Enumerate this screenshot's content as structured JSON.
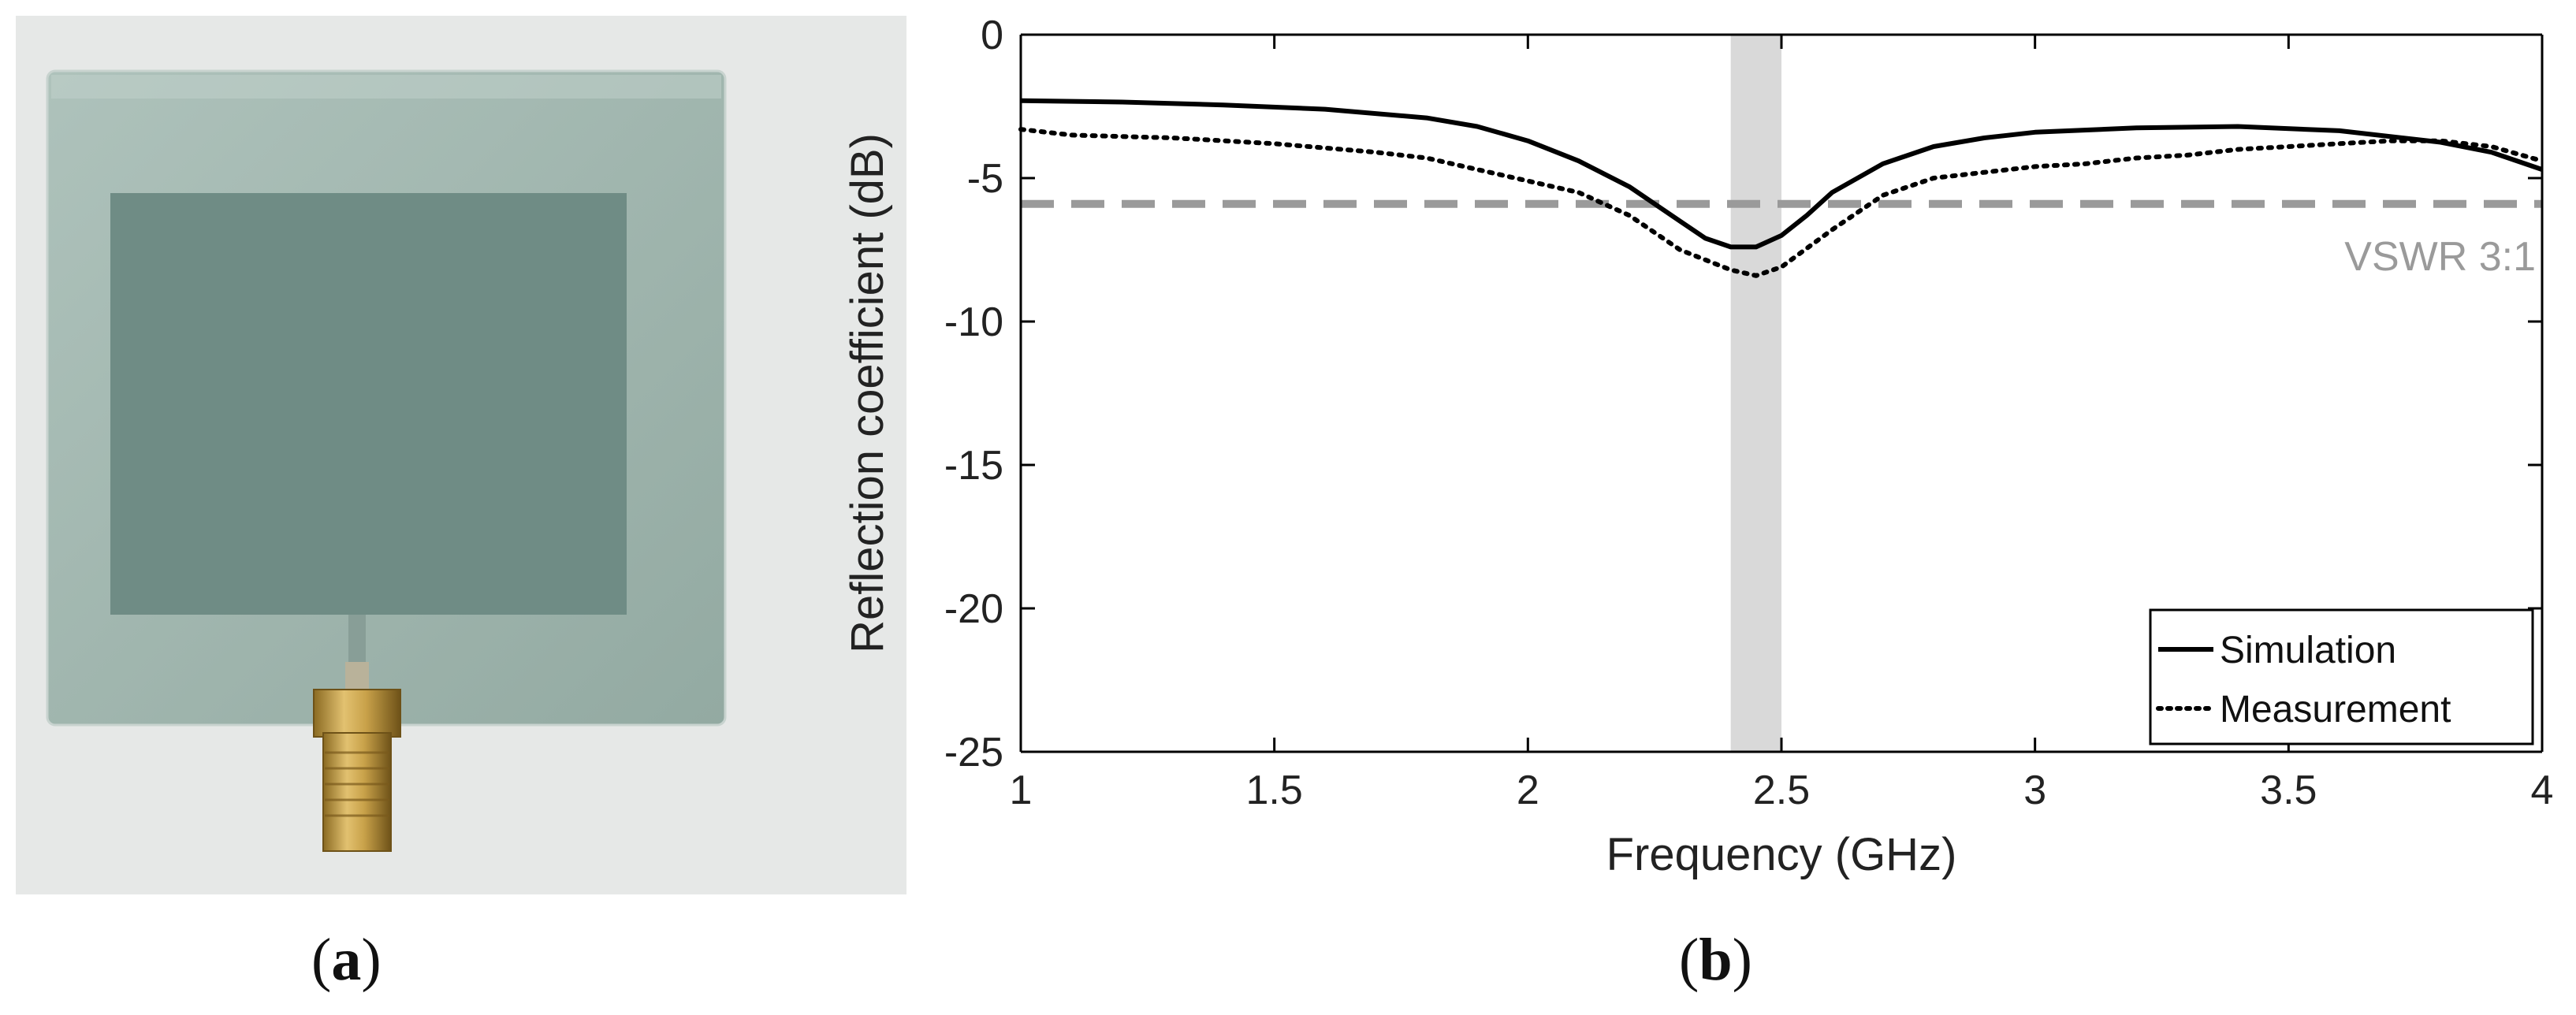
{
  "panels": {
    "a": {
      "caption_open": "(",
      "caption_letter": "a",
      "caption_close": ")"
    },
    "b": {
      "caption_open": "(",
      "caption_letter": "b",
      "caption_close": ")"
    }
  },
  "colors": {
    "glass": "#9fb5ad",
    "patch": "#6f8c85",
    "photo_bg": "#e6e8e7",
    "connector_gold": "#c9a24a",
    "band": "#d9d9d9",
    "vswr_line": "#9a9a9a",
    "curve": "#000000"
  },
  "chart_data": {
    "type": "line",
    "xlabel": "Frequency (GHz)",
    "ylabel": "Reflection coefficient (dB)",
    "xlim": [
      1,
      4
    ],
    "ylim": [
      -25,
      0
    ],
    "xticks": [
      1,
      1.5,
      2,
      2.5,
      3,
      3.5,
      4
    ],
    "xtick_labels": [
      "1",
      "1.5",
      "2",
      "2.5",
      "3",
      "3.5",
      "4"
    ],
    "yticks": [
      0,
      -5,
      -10,
      -15,
      -20,
      -25
    ],
    "ytick_labels": [
      "0",
      "-5",
      "-10",
      "-15",
      "-20",
      "-25"
    ],
    "grid": false,
    "legend_position": "bottom-right",
    "highlight_band": {
      "x_from": 2.4,
      "x_to": 2.5
    },
    "reference_line": {
      "y": -5.9,
      "label": "VSWR 3:1"
    },
    "series": [
      {
        "name": "Simulation",
        "style": "solid",
        "x": [
          1.0,
          1.2,
          1.4,
          1.6,
          1.8,
          1.9,
          2.0,
          2.1,
          2.2,
          2.3,
          2.35,
          2.4,
          2.45,
          2.5,
          2.55,
          2.6,
          2.7,
          2.8,
          2.9,
          3.0,
          3.2,
          3.4,
          3.6,
          3.8,
          3.9,
          4.0
        ],
        "y": [
          -2.3,
          -2.35,
          -2.45,
          -2.6,
          -2.9,
          -3.2,
          -3.7,
          -4.4,
          -5.3,
          -6.5,
          -7.1,
          -7.4,
          -7.4,
          -7.0,
          -6.3,
          -5.5,
          -4.5,
          -3.9,
          -3.6,
          -3.4,
          -3.25,
          -3.2,
          -3.35,
          -3.75,
          -4.1,
          -4.7
        ]
      },
      {
        "name": "Measurement",
        "style": "dotted",
        "x": [
          1.0,
          1.1,
          1.3,
          1.5,
          1.7,
          1.8,
          1.9,
          2.0,
          2.1,
          2.2,
          2.3,
          2.4,
          2.45,
          2.5,
          2.6,
          2.7,
          2.8,
          2.9,
          3.0,
          3.1,
          3.2,
          3.3,
          3.4,
          3.5,
          3.6,
          3.7,
          3.8,
          3.9,
          4.0
        ],
        "y": [
          -3.3,
          -3.5,
          -3.6,
          -3.8,
          -4.1,
          -4.3,
          -4.7,
          -5.1,
          -5.5,
          -6.3,
          -7.5,
          -8.2,
          -8.4,
          -8.1,
          -6.8,
          -5.6,
          -5.0,
          -4.8,
          -4.6,
          -4.5,
          -4.3,
          -4.2,
          -4.0,
          -3.9,
          -3.8,
          -3.7,
          -3.7,
          -3.9,
          -4.4
        ]
      }
    ]
  }
}
